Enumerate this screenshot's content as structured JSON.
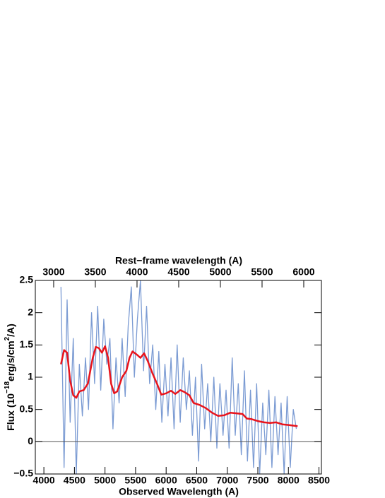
{
  "chart_data": {
    "type": "line",
    "title": "Rest−frame wavelength (A)",
    "xlabel": "Observed Wavelength (A)",
    "ylabel_parts": [
      "Flux (10",
      "−18",
      "erg/s/cm",
      "2",
      "/A)"
    ],
    "xlim": [
      3860,
      8540
    ],
    "xticks": [
      4000,
      4500,
      5000,
      5500,
      6000,
      6500,
      7000,
      7500,
      8000,
      8500
    ],
    "x2lim": [
      2780,
      6212
    ],
    "x2ticks": [
      3000,
      3500,
      4000,
      4500,
      5000,
      5500,
      6000
    ],
    "ylim": [
      -0.5,
      2.5
    ],
    "yticks": [
      {
        "value": -0.5,
        "label": "−0.5"
      },
      0,
      0.5,
      1,
      1.5,
      2,
      2.5
    ],
    "hline": 0,
    "series": [
      {
        "color": "#7b9bd3",
        "x": [
          4280,
          4330,
          4380,
          4430,
          4480,
          4530,
          4580,
          4630,
          4680,
          4730,
          4780,
          4830,
          4880,
          4930,
          4980,
          5030,
          5080,
          5130,
          5180,
          5230,
          5280,
          5330,
          5380,
          5430,
          5480,
          5530,
          5580,
          5630,
          5680,
          5730,
          5780,
          5830,
          5880,
          5930,
          5980,
          6030,
          6080,
          6130,
          6180,
          6230,
          6280,
          6330,
          6380,
          6430,
          6480,
          6530,
          6580,
          6630,
          6680,
          6730,
          6780,
          6830,
          6880,
          6930,
          6980,
          7030,
          7080,
          7130,
          7180,
          7230,
          7280,
          7330,
          7380,
          7430,
          7480,
          7530,
          7580,
          7630,
          7680,
          7730,
          7780,
          7830,
          7880,
          7930,
          7980,
          8030,
          8080,
          8130
        ],
        "values": [
          2.4,
          -0.4,
          2.2,
          0.3,
          1.6,
          -0.5,
          1.2,
          0.4,
          1.3,
          0.5,
          2.0,
          0.9,
          2.1,
          0.8,
          1.9,
          1.2,
          1.6,
          0.2,
          1.3,
          0.6,
          1.6,
          0.7,
          1.8,
          2.4,
          1.0,
          1.9,
          2.5,
          1.1,
          2.1,
          0.9,
          1.5,
          0.5,
          1.4,
          0.3,
          1.2,
          0.4,
          1.3,
          0.2,
          1.5,
          0.3,
          1.3,
          0.5,
          1.1,
          0.1,
          1.0,
          -0.3,
          1.2,
          0.2,
          0.9,
          0.0,
          1.0,
          -0.1,
          0.9,
          0.1,
          0.8,
          -0.1,
          1.3,
          0.1,
          0.9,
          -0.2,
          1.1,
          -0.3,
          0.8,
          -0.4,
          0.9,
          -0.5,
          0.6,
          -0.2,
          0.8,
          -0.4,
          0.7,
          -0.2,
          0.6,
          -0.5,
          0.7,
          -0.4,
          0.5,
          0.2
        ]
      },
      {
        "color": "#e8141c",
        "x": [
          4280,
          4330,
          4380,
          4430,
          4480,
          4530,
          4580,
          4650,
          4720,
          4800,
          4850,
          4900,
          4950,
          5000,
          5050,
          5100,
          5150,
          5200,
          5280,
          5350,
          5400,
          5450,
          5520,
          5580,
          5640,
          5700,
          5780,
          5850,
          5920,
          6000,
          6080,
          6150,
          6230,
          6300,
          6380,
          6450,
          6550,
          6650,
          6750,
          6850,
          6950,
          7050,
          7150,
          7250,
          7320,
          7400,
          7500,
          7600,
          7700,
          7800,
          7900,
          8000,
          8150
        ],
        "values": [
          1.2,
          1.42,
          1.38,
          0.95,
          0.72,
          0.68,
          0.78,
          0.8,
          0.9,
          1.3,
          1.47,
          1.45,
          1.38,
          1.48,
          1.3,
          0.9,
          0.75,
          0.78,
          1.0,
          1.1,
          1.3,
          1.4,
          1.35,
          1.3,
          1.37,
          1.25,
          1.05,
          0.9,
          0.73,
          0.75,
          0.79,
          0.74,
          0.8,
          0.77,
          0.72,
          0.6,
          0.57,
          0.52,
          0.45,
          0.4,
          0.41,
          0.45,
          0.44,
          0.43,
          0.36,
          0.35,
          0.32,
          0.3,
          0.29,
          0.3,
          0.27,
          0.26,
          0.24
        ]
      }
    ]
  }
}
